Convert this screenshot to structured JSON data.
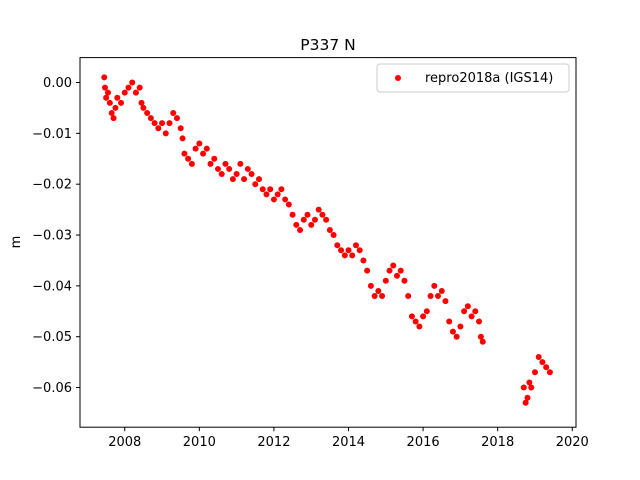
{
  "chart_data": {
    "type": "scatter",
    "title": "P337 N",
    "xlabel": "",
    "ylabel": "m",
    "xlim": [
      2006.8,
      2020.1
    ],
    "ylim": [
      -0.0678,
      0.0049
    ],
    "xticks": [
      2008,
      2010,
      2012,
      2014,
      2016,
      2018,
      2020
    ],
    "xtick_labels": [
      "2008",
      "2010",
      "2012",
      "2014",
      "2016",
      "2018",
      "2020"
    ],
    "yticks": [
      0.0,
      -0.01,
      -0.02,
      -0.03,
      -0.04,
      -0.05,
      -0.06
    ],
    "ytick_labels": [
      "0.00",
      "−0.01",
      "−0.02",
      "−0.03",
      "−0.04",
      "−0.05",
      "−0.06"
    ],
    "grid": false,
    "legend_position": "top-right",
    "series": [
      {
        "name": "repro2018a (IGS14)",
        "color": "#ff0000",
        "marker": "circle",
        "points": [
          [
            2007.45,
            0.001
          ],
          [
            2007.47,
            -0.001
          ],
          [
            2007.5,
            -0.003
          ],
          [
            2007.55,
            -0.002
          ],
          [
            2007.6,
            -0.004
          ],
          [
            2007.65,
            -0.006
          ],
          [
            2007.7,
            -0.007
          ],
          [
            2007.75,
            -0.005
          ],
          [
            2007.8,
            -0.003
          ],
          [
            2007.9,
            -0.004
          ],
          [
            2008.0,
            -0.002
          ],
          [
            2008.1,
            -0.001
          ],
          [
            2008.2,
            0.0
          ],
          [
            2008.3,
            -0.002
          ],
          [
            2008.4,
            -0.001
          ],
          [
            2008.45,
            -0.004
          ],
          [
            2008.5,
            -0.005
          ],
          [
            2008.6,
            -0.006
          ],
          [
            2008.7,
            -0.007
          ],
          [
            2008.8,
            -0.008
          ],
          [
            2008.9,
            -0.009
          ],
          [
            2009.0,
            -0.008
          ],
          [
            2009.1,
            -0.01
          ],
          [
            2009.2,
            -0.008
          ],
          [
            2009.3,
            -0.006
          ],
          [
            2009.4,
            -0.007
          ],
          [
            2009.5,
            -0.009
          ],
          [
            2009.55,
            -0.011
          ],
          [
            2009.6,
            -0.014
          ],
          [
            2009.7,
            -0.015
          ],
          [
            2009.8,
            -0.016
          ],
          [
            2009.9,
            -0.013
          ],
          [
            2010.0,
            -0.012
          ],
          [
            2010.1,
            -0.014
          ],
          [
            2010.2,
            -0.013
          ],
          [
            2010.3,
            -0.016
          ],
          [
            2010.4,
            -0.015
          ],
          [
            2010.5,
            -0.017
          ],
          [
            2010.6,
            -0.018
          ],
          [
            2010.7,
            -0.016
          ],
          [
            2010.8,
            -0.017
          ],
          [
            2010.9,
            -0.019
          ],
          [
            2011.0,
            -0.018
          ],
          [
            2011.1,
            -0.016
          ],
          [
            2011.2,
            -0.019
          ],
          [
            2011.3,
            -0.017
          ],
          [
            2011.4,
            -0.018
          ],
          [
            2011.5,
            -0.02
          ],
          [
            2011.6,
            -0.019
          ],
          [
            2011.7,
            -0.021
          ],
          [
            2011.8,
            -0.022
          ],
          [
            2011.9,
            -0.021
          ],
          [
            2012.0,
            -0.023
          ],
          [
            2012.1,
            -0.022
          ],
          [
            2012.2,
            -0.021
          ],
          [
            2012.3,
            -0.023
          ],
          [
            2012.4,
            -0.024
          ],
          [
            2012.5,
            -0.026
          ],
          [
            2012.6,
            -0.028
          ],
          [
            2012.7,
            -0.029
          ],
          [
            2012.8,
            -0.027
          ],
          [
            2012.9,
            -0.026
          ],
          [
            2013.0,
            -0.028
          ],
          [
            2013.1,
            -0.027
          ],
          [
            2013.2,
            -0.025
          ],
          [
            2013.3,
            -0.026
          ],
          [
            2013.4,
            -0.027
          ],
          [
            2013.5,
            -0.029
          ],
          [
            2013.6,
            -0.03
          ],
          [
            2013.7,
            -0.032
          ],
          [
            2013.8,
            -0.033
          ],
          [
            2013.9,
            -0.034
          ],
          [
            2014.0,
            -0.033
          ],
          [
            2014.1,
            -0.034
          ],
          [
            2014.2,
            -0.032
          ],
          [
            2014.3,
            -0.033
          ],
          [
            2014.4,
            -0.035
          ],
          [
            2014.5,
            -0.037
          ],
          [
            2014.6,
            -0.04
          ],
          [
            2014.7,
            -0.042
          ],
          [
            2014.8,
            -0.041
          ],
          [
            2014.9,
            -0.042
          ],
          [
            2015.0,
            -0.039
          ],
          [
            2015.1,
            -0.037
          ],
          [
            2015.2,
            -0.036
          ],
          [
            2015.3,
            -0.038
          ],
          [
            2015.4,
            -0.037
          ],
          [
            2015.5,
            -0.039
          ],
          [
            2015.6,
            -0.042
          ],
          [
            2015.7,
            -0.046
          ],
          [
            2015.8,
            -0.047
          ],
          [
            2015.9,
            -0.048
          ],
          [
            2016.0,
            -0.046
          ],
          [
            2016.1,
            -0.045
          ],
          [
            2016.2,
            -0.042
          ],
          [
            2016.3,
            -0.04
          ],
          [
            2016.4,
            -0.042
          ],
          [
            2016.5,
            -0.041
          ],
          [
            2016.6,
            -0.043
          ],
          [
            2016.7,
            -0.047
          ],
          [
            2016.8,
            -0.049
          ],
          [
            2016.9,
            -0.05
          ],
          [
            2017.0,
            -0.048
          ],
          [
            2017.1,
            -0.045
          ],
          [
            2017.2,
            -0.044
          ],
          [
            2017.3,
            -0.046
          ],
          [
            2017.4,
            -0.045
          ],
          [
            2017.5,
            -0.047
          ],
          [
            2017.55,
            -0.05
          ],
          [
            2017.6,
            -0.051
          ],
          [
            2018.7,
            -0.06
          ],
          [
            2018.75,
            -0.063
          ],
          [
            2018.8,
            -0.062
          ],
          [
            2018.85,
            -0.059
          ],
          [
            2018.9,
            -0.06
          ],
          [
            2019.0,
            -0.057
          ],
          [
            2019.1,
            -0.054
          ],
          [
            2019.2,
            -0.055
          ],
          [
            2019.3,
            -0.056
          ],
          [
            2019.4,
            -0.057
          ]
        ]
      }
    ]
  }
}
